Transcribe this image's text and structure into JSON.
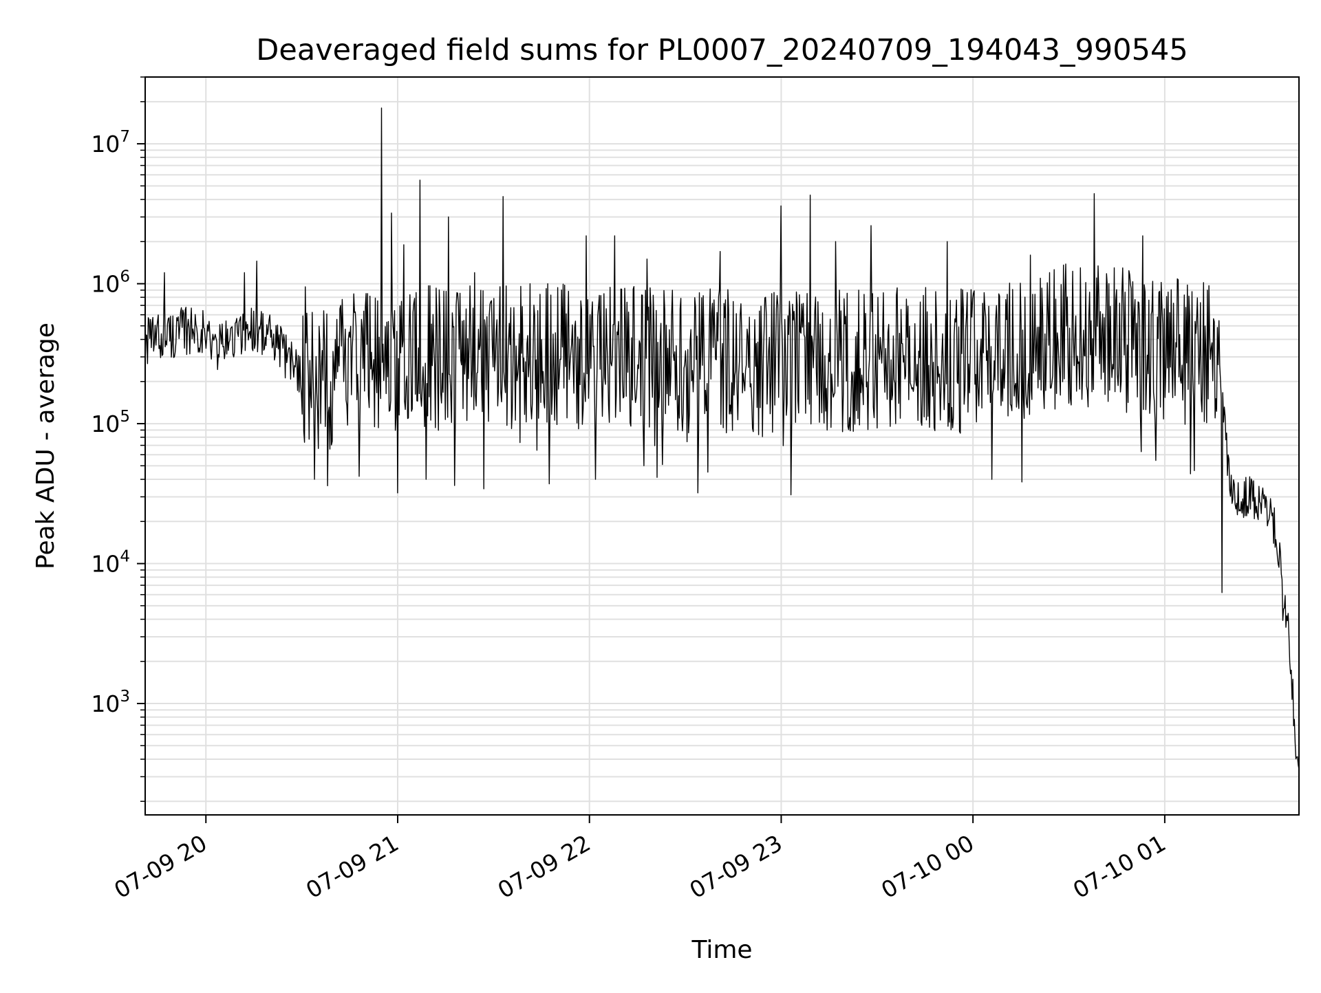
{
  "chart_data": {
    "type": "line",
    "title": "Deaveraged field sums for PL0007_20240709_194043_990545",
    "xlabel": "Time",
    "ylabel": "Peak ADU - average",
    "x_scale": "time",
    "y_scale": "log",
    "x_ticks": [
      {
        "value": "2024-07-09 20:00",
        "label": "07-09 20"
      },
      {
        "value": "2024-07-09 21:00",
        "label": "07-09 21"
      },
      {
        "value": "2024-07-09 22:00",
        "label": "07-09 22"
      },
      {
        "value": "2024-07-09 23:00",
        "label": "07-09 23"
      },
      {
        "value": "2024-07-10 00:00",
        "label": "07-10 00"
      },
      {
        "value": "2024-07-10 01:00",
        "label": "07-10 01"
      }
    ],
    "y_ticks": [
      {
        "value": 1000,
        "base": "10",
        "exp": "3"
      },
      {
        "value": 10000,
        "base": "10",
        "exp": "4"
      },
      {
        "value": 100000,
        "base": "10",
        "exp": "5"
      },
      {
        "value": 1000000,
        "base": "10",
        "exp": "6"
      },
      {
        "value": 10000000,
        "base": "10",
        "exp": "7"
      }
    ],
    "xlim": [
      "2024-07-09 19:41",
      "2024-07-10 01:42"
    ],
    "ylim": [
      160,
      30000000
    ],
    "grid": true,
    "legend": "none",
    "line_color": "#000000",
    "grid_color": "#e0e0e0",
    "series": [
      {
        "anchors": [
          [
            "2024-07-09 19:41",
            380000
          ],
          [
            "2024-07-09 19:46",
            420000
          ],
          [
            "2024-07-09 19:52",
            450000
          ],
          [
            "2024-07-09 19:58",
            480000
          ],
          [
            "2024-07-09 20:03",
            350000
          ],
          [
            "2024-07-09 20:08",
            400000
          ],
          [
            "2024-07-09 20:13",
            480000
          ],
          [
            "2024-07-09 20:18",
            450000
          ],
          [
            "2024-07-09 20:23",
            350000
          ],
          [
            "2024-07-09 20:28",
            250000
          ],
          [
            "2024-07-09 20:34",
            220000
          ],
          [
            "2024-07-09 20:40",
            220000
          ],
          [
            "2024-07-09 20:46",
            260000
          ],
          [
            "2024-07-09 21:00",
            300000
          ],
          [
            "2024-07-09 21:30",
            300000
          ],
          [
            "2024-07-09 22:00",
            300000
          ],
          [
            "2024-07-09 22:30",
            280000
          ],
          [
            "2024-07-09 23:00",
            260000
          ],
          [
            "2024-07-09 23:30",
            290000
          ],
          [
            "2024-07-10 00:00",
            280000
          ],
          [
            "2024-07-10 00:20",
            330000
          ],
          [
            "2024-07-10 00:30",
            450000
          ],
          [
            "2024-07-10 00:45",
            400000
          ],
          [
            "2024-07-10 01:00",
            330000
          ],
          [
            "2024-07-10 01:14",
            330000
          ],
          [
            "2024-07-10 01:17",
            300000
          ],
          [
            "2024-07-10 01:18",
            130000
          ],
          [
            "2024-07-10 01:19",
            80000
          ],
          [
            "2024-07-10 01:20",
            45000
          ],
          [
            "2024-07-10 01:22",
            30000
          ],
          [
            "2024-07-10 01:26",
            30000
          ],
          [
            "2024-07-10 01:31",
            28000
          ],
          [
            "2024-07-10 01:34",
            20000
          ],
          [
            "2024-07-10 01:36",
            10000
          ],
          [
            "2024-07-10 01:37",
            5000
          ],
          [
            "2024-07-10 01:39",
            3000
          ],
          [
            "2024-07-10 01:40",
            1200
          ],
          [
            "2024-07-10 01:41",
            500
          ],
          [
            "2024-07-10 01:42",
            300
          ]
        ],
        "noisy_until": "2024-07-10 01:17",
        "spikes": [
          [
            "2024-07-09 19:47",
            1200000
          ],
          [
            "2024-07-09 20:12",
            1200000
          ],
          [
            "2024-07-09 20:16",
            1450000
          ],
          [
            "2024-07-09 20:31",
            950000
          ],
          [
            "2024-07-09 20:55",
            18000000
          ],
          [
            "2024-07-09 20:58",
            3200000
          ],
          [
            "2024-07-09 21:02",
            1900000
          ],
          [
            "2024-07-09 21:07",
            5500000
          ],
          [
            "2024-07-09 21:16",
            3000000
          ],
          [
            "2024-07-09 21:24",
            1200000
          ],
          [
            "2024-07-09 21:33",
            4200000
          ],
          [
            "2024-07-09 21:47",
            1000000
          ],
          [
            "2024-07-09 21:59",
            2200000
          ],
          [
            "2024-07-09 22:08",
            2200000
          ],
          [
            "2024-07-09 22:18",
            1500000
          ],
          [
            "2024-07-09 22:41",
            1700000
          ],
          [
            "2024-07-09 23:00",
            3600000
          ],
          [
            "2024-07-09 23:09",
            4300000
          ],
          [
            "2024-07-09 23:17",
            2000000
          ],
          [
            "2024-07-09 23:28",
            2600000
          ],
          [
            "2024-07-09 23:52",
            2000000
          ],
          [
            "2024-07-10 00:18",
            1600000
          ],
          [
            "2024-07-10 00:24",
            1200000
          ],
          [
            "2024-07-10 00:38",
            4400000
          ],
          [
            "2024-07-10 00:53",
            2200000
          ]
        ],
        "dips": [
          [
            "2024-07-09 20:34",
            40000
          ],
          [
            "2024-07-09 20:38",
            36000
          ],
          [
            "2024-07-09 20:48",
            42000
          ],
          [
            "2024-07-09 21:00",
            32000
          ],
          [
            "2024-07-09 21:09",
            40000
          ],
          [
            "2024-07-09 22:02",
            40000
          ],
          [
            "2024-07-09 22:17",
            50000
          ],
          [
            "2024-07-09 22:34",
            32000
          ],
          [
            "2024-07-09 22:37",
            45000
          ],
          [
            "2024-07-09 23:03",
            31000
          ],
          [
            "2024-07-10 00:06",
            40000
          ],
          [
            "2024-07-10 01:18",
            6200
          ]
        ]
      }
    ]
  }
}
